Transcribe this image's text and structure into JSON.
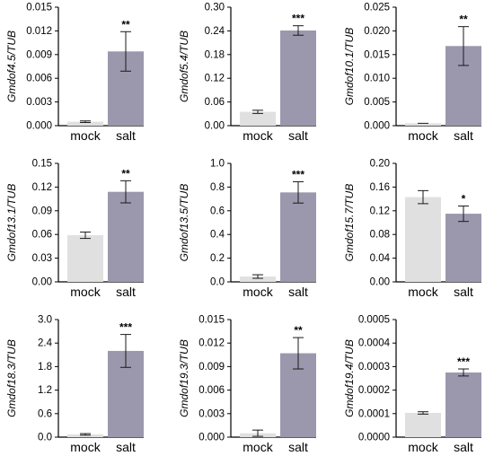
{
  "colors": {
    "mock": "#e0e0e0",
    "salt": "#9b98ad",
    "axis": "#000000",
    "error": "#1a1a1a"
  },
  "chart_data": [
    {
      "type": "bar",
      "ylabel": "Gmdof4.5/TUB",
      "categories": [
        "mock",
        "salt"
      ],
      "values": [
        0.0005,
        0.0094
      ],
      "errors": [
        0.0001,
        0.0025
      ],
      "significance": [
        "",
        "**"
      ],
      "ylim": [
        0,
        0.015
      ],
      "yticks": [
        "0.000",
        "0.003",
        "0.006",
        "0.009",
        "0.012",
        "0.015"
      ]
    },
    {
      "type": "bar",
      "ylabel": "Gmdof5.4/TUB",
      "categories": [
        "mock",
        "salt"
      ],
      "values": [
        0.035,
        0.241
      ],
      "errors": [
        0.004,
        0.012
      ],
      "significance": [
        "",
        "***"
      ],
      "ylim": [
        0,
        0.3
      ],
      "yticks": [
        "0.00",
        "0.06",
        "0.12",
        "0.18",
        "0.24",
        "0.30"
      ]
    },
    {
      "type": "bar",
      "ylabel": "Gmdof10.1/TUB",
      "categories": [
        "mock",
        "salt"
      ],
      "values": [
        0.0005,
        0.0168
      ],
      "errors": [
        0.0,
        0.0041
      ],
      "significance": [
        "",
        "**"
      ],
      "ylim": [
        0,
        0.025
      ],
      "yticks": [
        "0.000",
        "0.005",
        "0.010",
        "0.015",
        "0.020",
        "0.025"
      ]
    },
    {
      "type": "bar",
      "ylabel": "Gmdof13.1/TUB",
      "categories": [
        "mock",
        "salt"
      ],
      "values": [
        0.059,
        0.114
      ],
      "errors": [
        0.004,
        0.014
      ],
      "significance": [
        "",
        "**"
      ],
      "ylim": [
        0,
        0.15
      ],
      "yticks": [
        "0.00",
        "0.03",
        "0.06",
        "0.09",
        "0.12",
        "0.15"
      ]
    },
    {
      "type": "bar",
      "ylabel": "Gmdof13.5/TUB",
      "categories": [
        "mock",
        "salt"
      ],
      "values": [
        0.045,
        0.755
      ],
      "errors": [
        0.015,
        0.09
      ],
      "significance": [
        "",
        "***"
      ],
      "ylim": [
        0,
        1.0
      ],
      "yticks": [
        "0.0",
        "0.2",
        "0.4",
        "0.6",
        "0.8",
        "1.0"
      ]
    },
    {
      "type": "bar",
      "ylabel": "Gmdof15.7/TUB",
      "categories": [
        "mock",
        "salt"
      ],
      "values": [
        0.143,
        0.115
      ],
      "errors": [
        0.011,
        0.013
      ],
      "significance": [
        "",
        "*"
      ],
      "ylim": [
        0,
        0.2
      ],
      "yticks": [
        "0.00",
        "0.04",
        "0.08",
        "0.12",
        "0.16",
        "0.20"
      ]
    },
    {
      "type": "bar",
      "ylabel": "Gmdof18.3/TUB",
      "categories": [
        "mock",
        "salt"
      ],
      "values": [
        0.07,
        2.2
      ],
      "errors": [
        0.02,
        0.42
      ],
      "significance": [
        "",
        "***"
      ],
      "ylim": [
        0,
        3.0
      ],
      "yticks": [
        "0.0",
        "0.6",
        "1.2",
        "1.8",
        "2.4",
        "3.0"
      ]
    },
    {
      "type": "bar",
      "ylabel": "Gmdof19.3/TUB",
      "categories": [
        "mock",
        "salt"
      ],
      "values": [
        0.0005,
        0.0107
      ],
      "errors": [
        0.0004,
        0.002
      ],
      "significance": [
        "",
        "**"
      ],
      "ylim": [
        0,
        0.015
      ],
      "yticks": [
        "0.000",
        "0.003",
        "0.006",
        "0.009",
        "0.012",
        "0.015"
      ]
    },
    {
      "type": "bar",
      "ylabel": "Gmdof19.4/TUB",
      "categories": [
        "mock",
        "salt"
      ],
      "values": [
        0.000103,
        0.000275
      ],
      "errors": [
        5e-06,
        1.5e-05
      ],
      "significance": [
        "",
        "***"
      ],
      "ylim": [
        0,
        0.0005
      ],
      "yticks": [
        "0.0000",
        "0.0001",
        "0.0002",
        "0.0003",
        "0.0004",
        "0.0005"
      ]
    }
  ]
}
